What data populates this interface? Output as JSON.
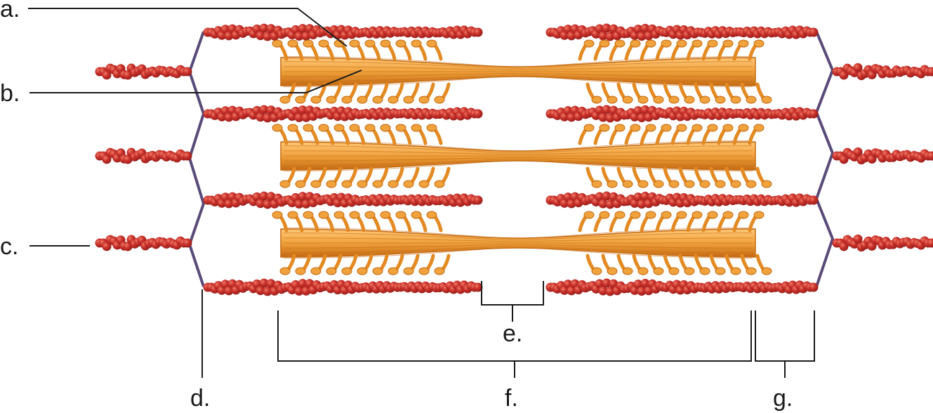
{
  "labels": {
    "a": "a.",
    "b": "b.",
    "c": "c.",
    "d": "d.",
    "e": "e.",
    "f": "f.",
    "g": "g."
  },
  "colors": {
    "actin": "#c8302a",
    "actin_dark": "#8e1a16",
    "actin_highlight": "#f07a66",
    "myosin": "#f0a23c",
    "myosin_dark": "#c46a12",
    "myosin_light": "#ffc878",
    "z_disc": "#5a4a78",
    "leader": "#1a1a1a"
  }
}
